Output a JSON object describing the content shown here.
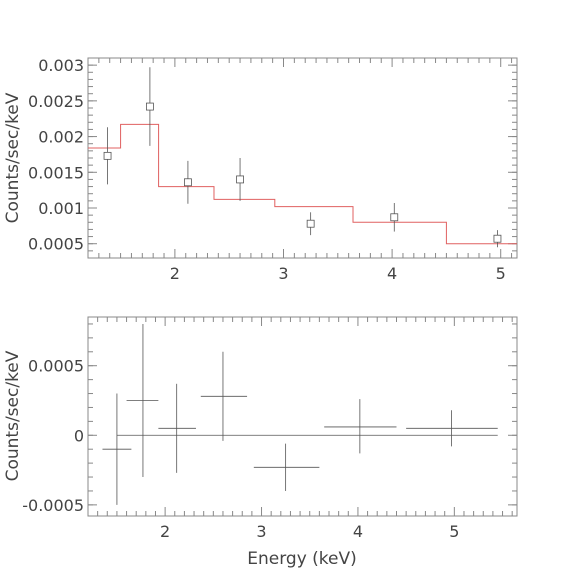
{
  "chart_data": [
    {
      "type": "scatter",
      "panel": "top",
      "ylabel": "Counts/sec/keV",
      "xlim": [
        1.2,
        5.15
      ],
      "ylim": [
        0.0003,
        0.0031
      ],
      "x_scale": "linear",
      "x_ticks": [
        2,
        3,
        4,
        5
      ],
      "x_tick_labels": [
        "2",
        "3",
        "4",
        "5"
      ],
      "y_ticks": [
        0.0005,
        0.001,
        0.0015,
        0.002,
        0.0025,
        0.003
      ],
      "y_tick_labels": [
        "0.0005",
        "0.001",
        "0.0015",
        "0.002",
        "0.0025",
        "0.003"
      ],
      "points": [
        {
          "x": 1.38,
          "y": 0.00173,
          "yerr": 0.0004
        },
        {
          "x": 1.77,
          "y": 0.00242,
          "yerr": 0.00055
        },
        {
          "x": 2.12,
          "y": 0.00136,
          "yerr": 0.0003
        },
        {
          "x": 2.6,
          "y": 0.0014,
          "yerr": 0.0003
        },
        {
          "x": 3.25,
          "y": 0.00078,
          "yerr": 0.00016
        },
        {
          "x": 4.02,
          "y": 0.00087,
          "yerr": 0.0002
        },
        {
          "x": 4.97,
          "y": 0.00057,
          "yerr": 0.00012
        }
      ],
      "model": {
        "color": "#e06060",
        "steps": [
          {
            "x0": 1.2,
            "x1": 1.5,
            "y": 0.00184
          },
          {
            "x0": 1.5,
            "x1": 1.85,
            "y": 0.00217
          },
          {
            "x0": 1.85,
            "x1": 2.36,
            "y": 0.0013
          },
          {
            "x0": 2.36,
            "x1": 2.92,
            "y": 0.00112
          },
          {
            "x0": 2.92,
            "x1": 3.64,
            "y": 0.00102
          },
          {
            "x0": 3.64,
            "x1": 4.5,
            "y": 0.0008
          },
          {
            "x0": 4.5,
            "x1": 5.15,
            "y": 0.0005
          }
        ]
      }
    },
    {
      "type": "scatter",
      "panel": "bottom",
      "xlabel": "Energy (keV)",
      "ylabel": "Counts/sec/keV",
      "xlim": [
        1.2,
        5.65
      ],
      "ylim": [
        -0.00058,
        0.00085
      ],
      "x_scale": "linear",
      "x_ticks": [
        2,
        3,
        4,
        5
      ],
      "x_tick_labels": [
        "2",
        "3",
        "4",
        "5"
      ],
      "y_ticks": [
        -0.0005,
        0,
        0.0005
      ],
      "y_tick_labels": [
        "-0.0005",
        "0",
        "0.0005"
      ],
      "zero_line": {
        "x0": 1.5,
        "x1": 5.45
      },
      "points": [
        {
          "x": 1.5,
          "xlo": 1.5,
          "xhi": 1.5,
          "y": -0.0001,
          "ylo": -0.0005,
          "yhi": 0.0003,
          "hxlo": 1.35,
          "hxhi": 1.65
        },
        {
          "x": 1.77,
          "xlo": 1.6,
          "xhi": 1.93,
          "y": 0.00025,
          "ylo": -0.0003,
          "yhi": 0.0008
        },
        {
          "x": 2.12,
          "xlo": 1.93,
          "xhi": 2.32,
          "y": 5e-05,
          "ylo": -0.00027,
          "yhi": 0.00037
        },
        {
          "x": 2.6,
          "xlo": 2.37,
          "xhi": 2.85,
          "y": 0.00028,
          "ylo": -4e-05,
          "yhi": 0.0006
        },
        {
          "x": 3.25,
          "xlo": 2.92,
          "xhi": 3.6,
          "y": -0.00023,
          "ylo": -0.0004,
          "yhi": -6e-05
        },
        {
          "x": 4.02,
          "xlo": 3.65,
          "xhi": 4.4,
          "y": 6e-05,
          "ylo": -0.00013,
          "yhi": 0.00026
        },
        {
          "x": 4.97,
          "xlo": 4.5,
          "xhi": 5.45,
          "y": 5e-05,
          "ylo": -8e-05,
          "yhi": 0.00018
        }
      ]
    }
  ]
}
